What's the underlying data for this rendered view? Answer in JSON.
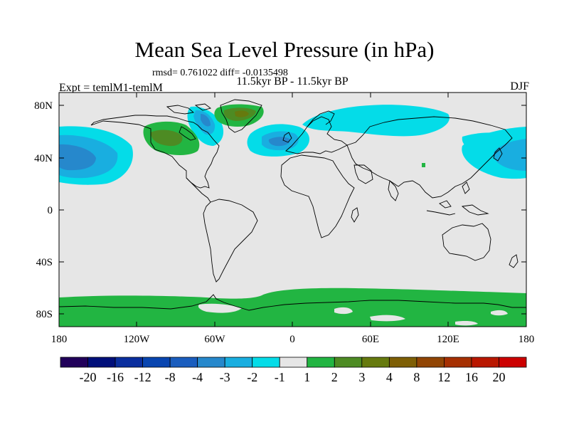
{
  "title": "Mean Sea Level Pressure (in hPa)",
  "stats": "rmsd= 0.761022 diff= -0.0135498",
  "left_label": "Expt = temlM1-temlM",
  "center_label": "11.5kyr BP - 11.5kyr BP",
  "right_label": "DJF",
  "map": {
    "projection": "cylindrical equidistant",
    "lon_range": [
      -180,
      180
    ],
    "lat_range": [
      -90,
      90
    ],
    "background_color": "#e6e6e6",
    "y_ticks": [
      "80N",
      "40N",
      "0",
      "40S",
      "80S"
    ],
    "x_ticks": [
      "180",
      "120W",
      "60W",
      "0",
      "60E",
      "120E",
      "180"
    ]
  },
  "colorbar": {
    "colors": [
      "#21005a",
      "#000f7a",
      "#0a2e9e",
      "#0845b0",
      "#1a5dbe",
      "#2688cc",
      "#19aee0",
      "#04dce8",
      "#e6e6e6",
      "#22b542",
      "#4d8b23",
      "#667a0e",
      "#7e5f05",
      "#914504",
      "#a63002",
      "#b91700",
      "#cc0000"
    ],
    "labels": [
      "-20",
      "-16",
      "-12",
      "-8",
      "-4",
      "-3",
      "-2",
      "-1",
      "1",
      "2",
      "3",
      "4",
      "8",
      "12",
      "16",
      "20"
    ]
  }
}
